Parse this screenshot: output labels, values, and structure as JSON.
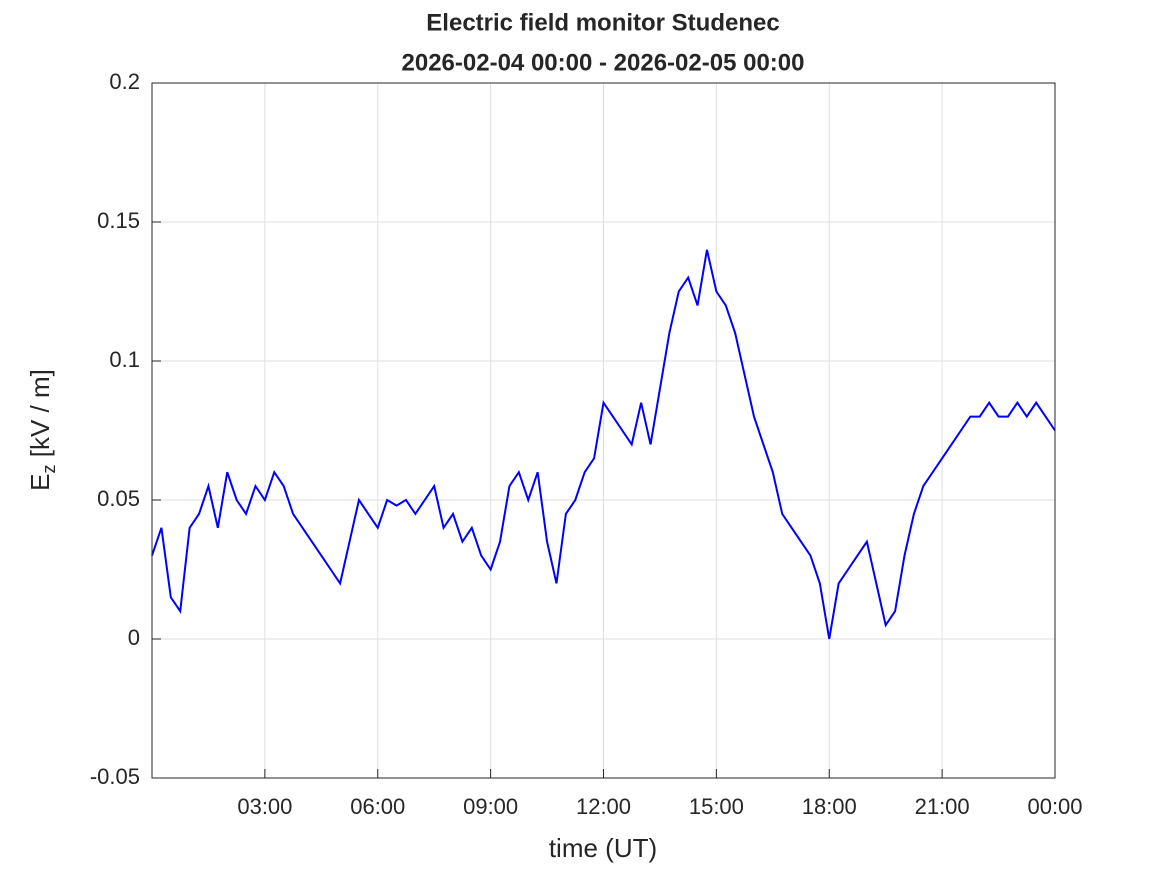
{
  "chart_data": {
    "type": "line",
    "title": "Electric field monitor Studenec",
    "subtitle": "2026-02-04 00:00 - 2026-02-05 00:00",
    "xlabel": "time (UT)",
    "ylabel": [
      "E",
      "z",
      " [kV / m]"
    ],
    "xlim": [
      0,
      24
    ],
    "ylim": [
      -0.05,
      0.2
    ],
    "xticks": [
      {
        "value": 3,
        "label": "03:00"
      },
      {
        "value": 6,
        "label": "06:00"
      },
      {
        "value": 9,
        "label": "09:00"
      },
      {
        "value": 12,
        "label": "12:00"
      },
      {
        "value": 15,
        "label": "15:00"
      },
      {
        "value": 18,
        "label": "18:00"
      },
      {
        "value": 21,
        "label": "21:00"
      },
      {
        "value": 24,
        "label": "00:00"
      }
    ],
    "yticks": [
      -0.05,
      0,
      0.05,
      0.1,
      0.15,
      0.2
    ],
    "grid": true,
    "series": [
      {
        "name": "Ez",
        "color": "#0000ff",
        "x": [
          0,
          0.25,
          0.5,
          0.75,
          1,
          1.25,
          1.5,
          1.75,
          2,
          2.25,
          2.5,
          2.75,
          3,
          3.25,
          3.5,
          3.75,
          4,
          4.25,
          4.5,
          4.75,
          5,
          5.25,
          5.5,
          5.75,
          6,
          6.25,
          6.5,
          6.75,
          7,
          7.25,
          7.5,
          7.75,
          8,
          8.25,
          8.5,
          8.75,
          9,
          9.25,
          9.5,
          9.75,
          10,
          10.25,
          10.5,
          10.75,
          11,
          11.25,
          11.5,
          11.75,
          12,
          12.25,
          12.5,
          12.75,
          13,
          13.25,
          13.5,
          13.75,
          14,
          14.25,
          14.5,
          14.75,
          15,
          15.25,
          15.5,
          15.75,
          16,
          16.25,
          16.5,
          16.75,
          17,
          17.25,
          17.5,
          17.75,
          18,
          18.25,
          18.5,
          18.75,
          19,
          19.25,
          19.5,
          19.75,
          20,
          20.25,
          20.5,
          20.75,
          21,
          21.25,
          21.5,
          21.75,
          22,
          22.25,
          22.5,
          22.75,
          23,
          23.25,
          23.5,
          23.75,
          24
        ],
        "values": [
          0.03,
          0.04,
          0.015,
          0.01,
          0.04,
          0.045,
          0.055,
          0.04,
          0.06,
          0.05,
          0.045,
          0.055,
          0.05,
          0.06,
          0.055,
          0.045,
          0.04,
          0.035,
          0.03,
          0.025,
          0.02,
          0.035,
          0.05,
          0.045,
          0.04,
          0.05,
          0.048,
          0.05,
          0.045,
          0.05,
          0.055,
          0.04,
          0.045,
          0.035,
          0.04,
          0.03,
          0.025,
          0.035,
          0.055,
          0.06,
          0.05,
          0.06,
          0.035,
          0.02,
          0.045,
          0.05,
          0.06,
          0.065,
          0.085,
          0.08,
          0.075,
          0.07,
          0.085,
          0.07,
          0.09,
          0.11,
          0.125,
          0.13,
          0.12,
          0.14,
          0.125,
          0.12,
          0.11,
          0.095,
          0.08,
          0.07,
          0.06,
          0.045,
          0.04,
          0.035,
          0.03,
          0.02,
          0.0,
          0.02,
          0.025,
          0.03,
          0.035,
          0.02,
          0.005,
          0.01,
          0.03,
          0.045,
          0.055,
          0.06,
          0.065,
          0.07,
          0.075,
          0.08,
          0.08,
          0.085,
          0.08,
          0.08,
          0.085,
          0.08,
          0.085,
          0.08,
          0.075
        ]
      }
    ]
  }
}
